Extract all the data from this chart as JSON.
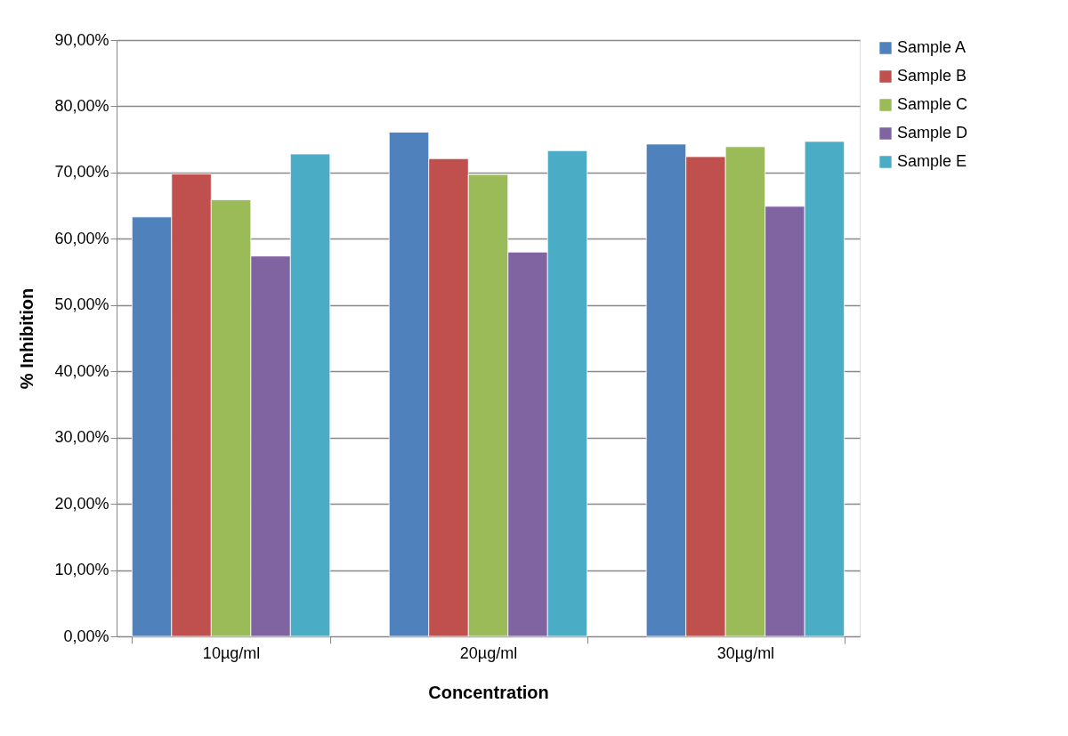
{
  "chart_data": {
    "type": "bar",
    "xlabel": "Concentration",
    "ylabel": "% Inhibition",
    "categories": [
      "10µg/ml",
      "20µg/ml",
      "30µg/ml"
    ],
    "series": [
      {
        "name": "Sample A",
        "color": "#4f81bd",
        "values": [
          63.3,
          76.1,
          74.3
        ]
      },
      {
        "name": "Sample B",
        "color": "#c0504d",
        "values": [
          69.8,
          72.1,
          72.4
        ]
      },
      {
        "name": "Sample C",
        "color": "#9bbb59",
        "values": [
          65.9,
          69.7,
          73.9
        ]
      },
      {
        "name": "Sample D",
        "color": "#8064a2",
        "values": [
          57.4,
          58.0,
          64.9
        ]
      },
      {
        "name": "Sample E",
        "color": "#4bacc6",
        "values": [
          72.8,
          73.3,
          74.7
        ]
      }
    ],
    "ylim": [
      0,
      90
    ],
    "yticks": [
      {
        "value": 0,
        "label": "0,00%"
      },
      {
        "value": 10,
        "label": "10,00%"
      },
      {
        "value": 20,
        "label": "20,00%"
      },
      {
        "value": 30,
        "label": "30,00%"
      },
      {
        "value": 40,
        "label": "40,00%"
      },
      {
        "value": 50,
        "label": "50,00%"
      },
      {
        "value": 60,
        "label": "60,00%"
      },
      {
        "value": 70,
        "label": "70,00%"
      },
      {
        "value": 80,
        "label": "80,00%"
      },
      {
        "value": 90,
        "label": "90,00%"
      }
    ],
    "grid": "y",
    "legend": "right"
  }
}
